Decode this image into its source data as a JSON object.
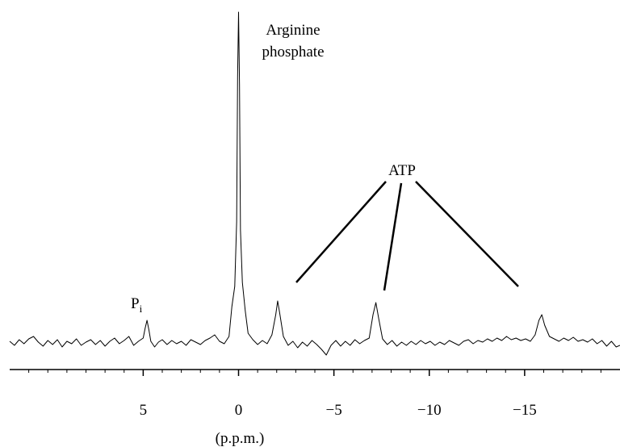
{
  "chart_data": {
    "type": "line",
    "x": [
      12,
      11.75,
      11.5,
      11.25,
      11,
      10.75,
      10.5,
      10.25,
      10,
      9.75,
      9.5,
      9.25,
      9,
      8.75,
      8.5,
      8.25,
      8,
      7.75,
      7.5,
      7.25,
      7,
      6.75,
      6.5,
      6.25,
      6,
      5.75,
      5.5,
      5.25,
      5,
      4.9,
      4.8,
      4.7,
      4.6,
      4.4,
      4.2,
      4,
      3.75,
      3.5,
      3.25,
      3,
      2.75,
      2.5,
      2.25,
      2,
      1.75,
      1.5,
      1.25,
      1,
      0.75,
      0.5,
      0.35,
      0.2,
      0.1,
      0.05,
      0,
      -0.05,
      -0.1,
      -0.2,
      -0.35,
      -0.5,
      -0.75,
      -1,
      -1.25,
      -1.5,
      -1.75,
      -1.95,
      -2.05,
      -2.15,
      -2.35,
      -2.6,
      -2.85,
      -3.1,
      -3.35,
      -3.6,
      -3.85,
      -4.1,
      -4.35,
      -4.6,
      -4.85,
      -5.1,
      -5.35,
      -5.6,
      -5.85,
      -6.1,
      -6.35,
      -6.6,
      -6.85,
      -7.05,
      -7.2,
      -7.35,
      -7.55,
      -7.8,
      -8.05,
      -8.3,
      -8.55,
      -8.8,
      -9.05,
      -9.3,
      -9.55,
      -9.8,
      -10.05,
      -10.3,
      -10.55,
      -10.8,
      -11.05,
      -11.3,
      -11.55,
      -11.8,
      -12.05,
      -12.3,
      -12.55,
      -12.8,
      -13.05,
      -13.3,
      -13.55,
      -13.8,
      -14.05,
      -14.3,
      -14.55,
      -14.8,
      -15.05,
      -15.3,
      -15.55,
      -15.75,
      -15.9,
      -16.05,
      -16.3,
      -16.55,
      -16.8,
      -17.05,
      -17.3,
      -17.55,
      -17.8,
      -18.05,
      -18.3,
      -18.55,
      -18.8,
      -19.05,
      -19.3,
      -19.55,
      -19.8,
      -20
    ],
    "values": [
      2,
      -3,
      4,
      -1,
      5,
      8,
      1,
      -4,
      3,
      -2,
      4,
      -5,
      2,
      -1,
      5,
      -3,
      1,
      4,
      -2,
      3,
      -4,
      2,
      6,
      -1,
      3,
      8,
      -3,
      2,
      6,
      18,
      28,
      16,
      2,
      -5,
      1,
      4,
      -2,
      3,
      -1,
      2,
      -3,
      4,
      1,
      -2,
      3,
      6,
      10,
      2,
      -1,
      8,
      45,
      70,
      150,
      330,
      410,
      320,
      140,
      75,
      40,
      12,
      4,
      -2,
      3,
      -1,
      10,
      35,
      52,
      38,
      8,
      -3,
      2,
      -6,
      1,
      -4,
      3,
      -2,
      -8,
      -15,
      -3,
      3,
      -4,
      2,
      -3,
      4,
      -1,
      3,
      6,
      35,
      50,
      30,
      5,
      -2,
      3,
      -4,
      1,
      -3,
      2,
      -2,
      3,
      -1,
      2,
      -3,
      1,
      -2,
      3,
      0,
      -3,
      2,
      4,
      -1,
      3,
      1,
      5,
      2,
      6,
      3,
      8,
      4,
      6,
      3,
      5,
      2,
      10,
      28,
      35,
      22,
      8,
      5,
      2,
      6,
      3,
      7,
      2,
      4,
      1,
      5,
      -1,
      3,
      -4,
      2,
      -5,
      -3
    ],
    "color": "#000000",
    "xlim": [
      12,
      -20
    ],
    "ylim": [
      -15,
      415
    ],
    "xticks": [
      5,
      0,
      {
        "value": -5,
        "label": "−5"
      },
      {
        "value": -10,
        "label": "−10"
      },
      {
        "value": -15,
        "label": "−15"
      }
    ],
    "xminorticks": [
      11,
      10,
      9,
      8,
      7,
      6,
      4,
      3,
      2,
      1,
      -1,
      -2,
      -3,
      -4,
      -6,
      -7,
      -8,
      -9,
      -11,
      -12,
      -13,
      -14,
      -16,
      -17,
      -18,
      -19
    ],
    "xlabel": "(p.p.m.)",
    "annotations": [
      "Arginine",
      "phosphate",
      "ATP"
    ],
    "pi_label": {
      "text": "P",
      "subscript": "i"
    }
  }
}
